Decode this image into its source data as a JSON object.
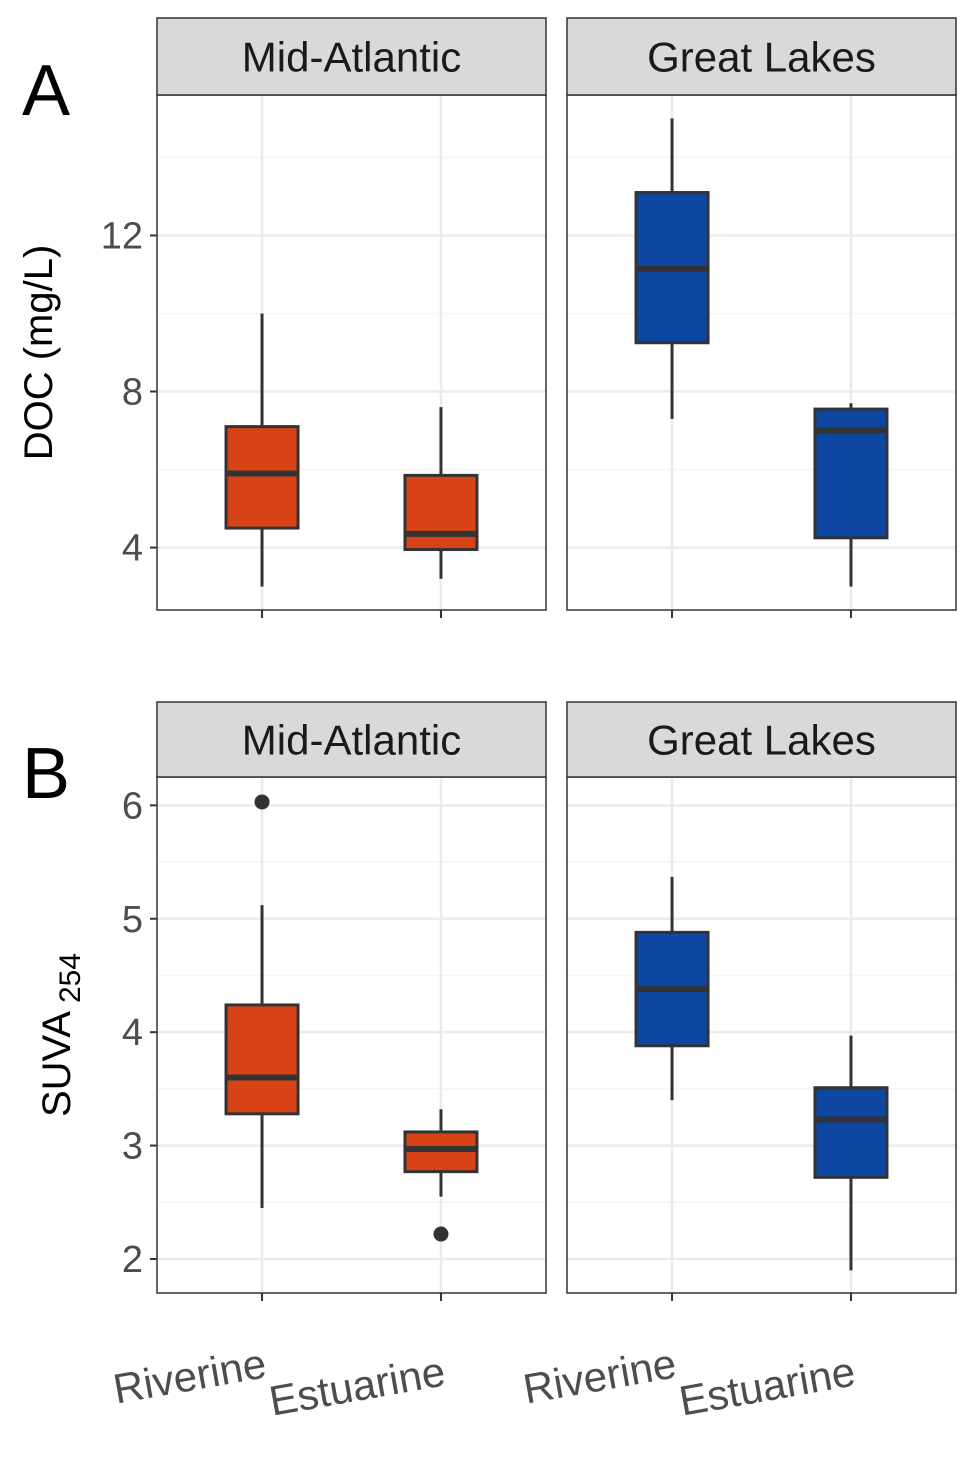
{
  "chart_data": [
    {
      "type": "boxplot",
      "panel_label": "A",
      "ylabel": "DOC (mg/L)",
      "ylabel_sub": "",
      "ylim": [
        2.4,
        15.6
      ],
      "yticks": [
        4,
        8,
        12
      ],
      "ytick_labels": [
        "4",
        "8",
        "12"
      ],
      "grid": true,
      "facets": [
        {
          "name": "Mid-Atlantic",
          "boxes": [
            {
              "category": "Riverine",
              "whisker_low": 3.0,
              "q1": 4.5,
              "median": 5.9,
              "q3": 7.1,
              "whisker_high": 10.0,
              "outliers": [],
              "color": "#D84315"
            },
            {
              "category": "Estuarine",
              "whisker_low": 3.2,
              "q1": 3.95,
              "median": 4.35,
              "q3": 5.85,
              "whisker_high": 7.6,
              "outliers": [],
              "color": "#D84315"
            }
          ]
        },
        {
          "name": "Great Lakes",
          "boxes": [
            {
              "category": "Riverine",
              "whisker_low": 7.3,
              "q1": 9.25,
              "median": 11.15,
              "q3": 13.1,
              "whisker_high": 15.0,
              "outliers": [],
              "color": "#0D47A1"
            },
            {
              "category": "Estuarine",
              "whisker_low": 3.0,
              "q1": 4.25,
              "median": 7.0,
              "q3": 7.55,
              "whisker_high": 7.7,
              "outliers": [],
              "color": "#0D47A1"
            }
          ]
        }
      ]
    },
    {
      "type": "boxplot",
      "panel_label": "B",
      "ylabel": "SUVA",
      "ylabel_sub": "254",
      "ylim": [
        1.7,
        6.25
      ],
      "yticks": [
        2,
        3,
        4,
        5,
        6
      ],
      "ytick_labels": [
        "2",
        "3",
        "4",
        "5",
        "6"
      ],
      "grid": true,
      "facets": [
        {
          "name": "Mid-Atlantic",
          "boxes": [
            {
              "category": "Riverine",
              "whisker_low": 2.45,
              "q1": 3.28,
              "median": 3.6,
              "q3": 4.24,
              "whisker_high": 5.12,
              "outliers": [
                6.03
              ],
              "color": "#D84315"
            },
            {
              "category": "Estuarine",
              "whisker_low": 2.55,
              "q1": 2.77,
              "median": 2.97,
              "q3": 3.12,
              "whisker_high": 3.32,
              "outliers": [
                2.22
              ],
              "color": "#D84315"
            }
          ]
        },
        {
          "name": "Great Lakes",
          "boxes": [
            {
              "category": "Riverine",
              "whisker_low": 3.4,
              "q1": 3.88,
              "median": 4.38,
              "q3": 4.88,
              "whisker_high": 5.37,
              "outliers": [],
              "color": "#0D47A1"
            },
            {
              "category": "Estuarine",
              "whisker_low": 1.9,
              "q1": 2.72,
              "median": 3.23,
              "q3": 3.51,
              "whisker_high": 3.97,
              "outliers": [],
              "color": "#0D47A1"
            }
          ]
        }
      ]
    }
  ],
  "x_categories": [
    "Riverine",
    "Estuarine"
  ],
  "colors": {
    "strip_fill": "#d9d9d9",
    "panel_border": "#333333",
    "grid_major": "#ebebeb",
    "grid_minor": "#f5f5f5",
    "box_outline": "#333333",
    "mid_atlantic": "#D84315",
    "great_lakes": "#0D47A1"
  }
}
